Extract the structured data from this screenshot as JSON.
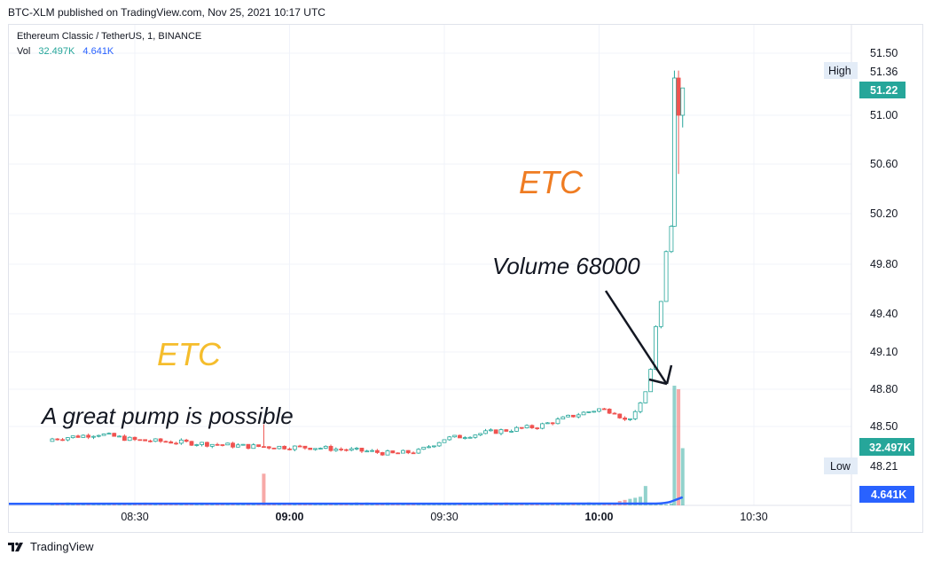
{
  "published": "BTC-XLM published on TradingView.com, Nov 25, 2021 10:17 UTC",
  "legend": {
    "symbol": "Ethereum Classic / TetherUS, 1, BINANCE",
    "vol_label": "Vol",
    "vol_value_1": "32.497K",
    "vol_value_2": "4.641K"
  },
  "footer": {
    "brand": "TradingView",
    "logo_icon": "tradingview-logo-icon"
  },
  "annotations": {
    "etc_orange": "ETC",
    "etc_yellow": "ETC",
    "volume_note": "Volume 68000",
    "pump_note": "A great pump is possible"
  },
  "colors": {
    "up": "#26a69a",
    "down": "#ef5350",
    "volume_line": "#2962ff",
    "etc_orange": "#ef7c22",
    "etc_yellow": "#f5bd2c",
    "grid": "#f0f3fa"
  },
  "chart_data": {
    "type": "candlestick",
    "title": "Ethereum Classic / TetherUS, 1, BINANCE",
    "interval": "1",
    "exchange": "BINANCE",
    "x_ticks": [
      "08:30",
      "09:00",
      "09:30",
      "10:00",
      "10:30"
    ],
    "x_ticks_minutes": [
      510,
      540,
      570,
      600,
      630
    ],
    "y_ticks": [
      48.5,
      48.8,
      49.1,
      49.4,
      49.8,
      50.2,
      50.6,
      51.0,
      51.5
    ],
    "y_tick_labels": [
      "48.50",
      "48.80",
      "49.10",
      "49.40",
      "49.80",
      "50.20",
      "50.60",
      "51.00",
      "51.50"
    ],
    "grid": true,
    "price_labels": {
      "high_label": "High",
      "high_value": 51.36,
      "last_value": 51.22,
      "low_label": "Low",
      "low_value": 48.21,
      "volume_value": "32.497K",
      "volume_ma_value": "4.641K"
    },
    "candle_keypoints": [
      {
        "t": 494,
        "close": 48.4
      },
      {
        "t": 503,
        "close": 48.44
      },
      {
        "t": 510,
        "close": 48.39
      },
      {
        "t": 520,
        "close": 48.37
      },
      {
        "t": 532,
        "close": 48.34
      },
      {
        "t": 545,
        "close": 48.33
      },
      {
        "t": 555,
        "close": 48.3
      },
      {
        "t": 560,
        "close": 48.28
      },
      {
        "t": 565,
        "close": 48.3
      },
      {
        "t": 570,
        "close": 48.4
      },
      {
        "t": 578,
        "close": 48.45
      },
      {
        "t": 588,
        "close": 48.5
      },
      {
        "t": 596,
        "close": 48.6
      },
      {
        "t": 600,
        "close": 48.64
      },
      {
        "t": 603,
        "close": 48.62
      },
      {
        "t": 605,
        "close": 48.55
      },
      {
        "t": 607,
        "close": 48.6
      },
      {
        "t": 609,
        "close": 48.78
      },
      {
        "t": 610,
        "close": 48.96
      },
      {
        "t": 611,
        "close": 49.3
      },
      {
        "t": 612,
        "close": 49.5
      },
      {
        "t": 613,
        "close": 49.9
      },
      {
        "t": 614,
        "close": 50.1
      },
      {
        "t": 614.6,
        "close": 51.3
      },
      {
        "t": 615.4,
        "close": 51.0
      },
      {
        "t": 616.2,
        "close": 51.22
      }
    ],
    "volume_keypoints": [
      {
        "t": 535,
        "volume": 18000
      },
      {
        "t": 609,
        "volume": 11000
      },
      {
        "t": 614.6,
        "volume": 68000
      },
      {
        "t": 615.4,
        "volume": 66000
      },
      {
        "t": 616.2,
        "volume": 32497
      }
    ]
  }
}
